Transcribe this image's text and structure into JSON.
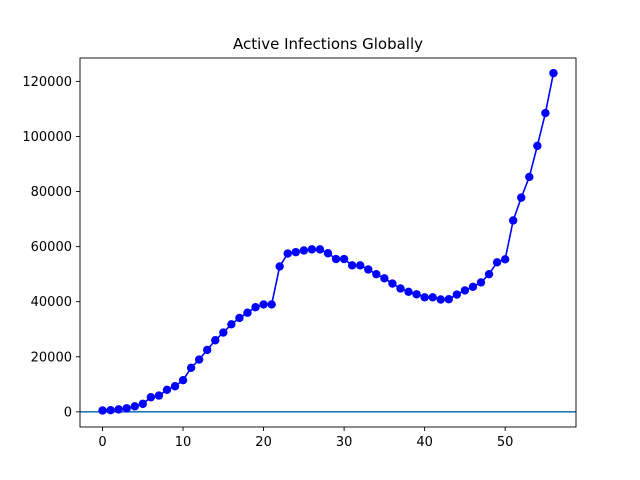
{
  "chart_data": {
    "type": "line",
    "title": "Active Infections Globally",
    "xlabel": "",
    "ylabel": "",
    "xlim": [
      -2.8,
      58.8
    ],
    "ylim": [
      -5500,
      128500
    ],
    "xticks": [
      0,
      10,
      20,
      30,
      40,
      50
    ],
    "yticks": [
      0,
      20000,
      40000,
      60000,
      80000,
      100000,
      120000
    ],
    "grid": false,
    "series": [
      {
        "color": "#0000ff",
        "marker": "circle",
        "x": [
          0,
          1,
          2,
          3,
          4,
          5,
          6,
          7,
          8,
          9,
          10,
          11,
          12,
          13,
          14,
          15,
          16,
          17,
          18,
          19,
          20,
          21,
          22,
          23,
          24,
          25,
          26,
          27,
          28,
          29,
          30,
          31,
          32,
          33,
          34,
          35,
          36,
          37,
          38,
          39,
          40,
          41,
          42,
          43,
          44,
          45,
          46,
          47,
          48,
          49,
          50,
          51,
          52,
          53,
          54,
          55,
          56
        ],
        "values": [
          500,
          600,
          900,
          1300,
          2000,
          2900,
          5300,
          5900,
          8000,
          9300,
          11500,
          16000,
          19000,
          22500,
          26000,
          28800,
          31800,
          34100,
          36000,
          38000,
          39000,
          39000,
          52800,
          57500,
          58000,
          58600,
          59000,
          59000,
          57600,
          55500,
          55500,
          53200,
          53200,
          51700,
          50000,
          48500,
          46600,
          44800,
          43600,
          42700,
          41600,
          41600,
          40800,
          40900,
          42600,
          44100,
          45400,
          47000,
          50000,
          54300,
          55400,
          69500,
          77800,
          85300,
          96600,
          108500,
          123000
        ]
      }
    ],
    "hline": {
      "y": 0,
      "color": "#1f77b4"
    }
  }
}
